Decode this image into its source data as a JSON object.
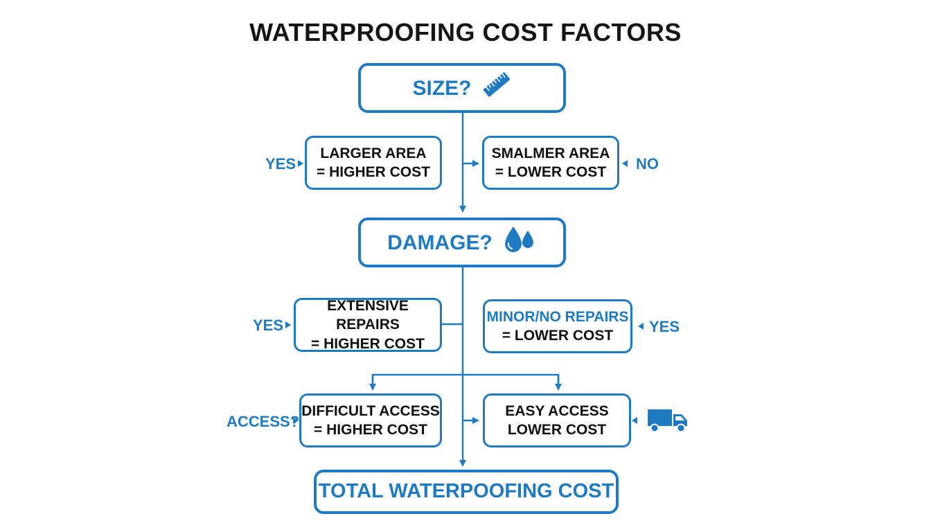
{
  "title": "WATERPROOFING COST FACTORS",
  "colors": {
    "accent": "#1f7bc1",
    "text": "#111111"
  },
  "nodes": {
    "size": {
      "label": "SIZE?",
      "icon": "ruler-icon"
    },
    "larger_area": {
      "line1": "LARGER AREA",
      "line2": "= HIGHER COST"
    },
    "smaller_area": {
      "line1": "SMALMER AREA",
      "line2": "= LOWER COST"
    },
    "damage": {
      "label": "DAMAGE?",
      "icon": "water-drops-icon"
    },
    "extensive": {
      "line1": "EXTENSIVE REPAIRS",
      "line2": "= HIGHER COST"
    },
    "minor": {
      "line1": "MINOR/NO REPAIRS",
      "line2": "= LOWER COST"
    },
    "difficult": {
      "line1": "DIFFICULT ACCESS",
      "line2": "= HIGHER COST"
    },
    "easy": {
      "line1": "EASY ACCESS",
      "line2": "LOWER COST",
      "icon": "truck-icon"
    },
    "total": {
      "label": "TOTAL WATERPOOFING COST"
    }
  },
  "side_labels": {
    "size_yes": "YES",
    "size_no": "NO",
    "damage_yes_left": "YES",
    "damage_yes_right": "YES",
    "access": "ACCESS?"
  }
}
